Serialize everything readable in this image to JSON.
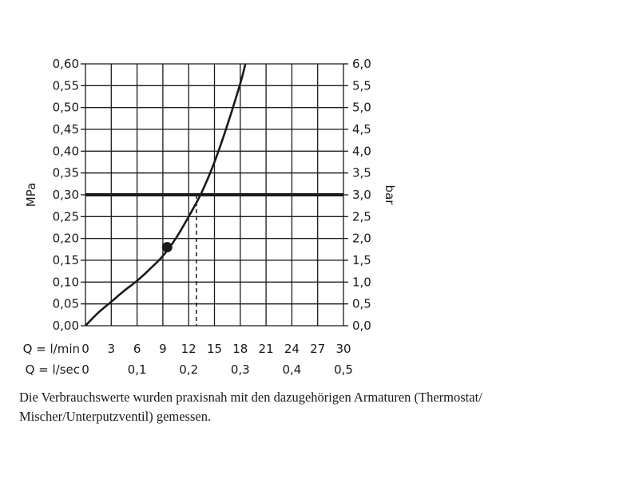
{
  "chart_data": {
    "type": "line",
    "y_left_label": "MPa",
    "y_right_label": "bar",
    "y_left_ticks": [
      "0,00",
      "0,05",
      "0,10",
      "0,15",
      "0,20",
      "0,25",
      "0,30",
      "0,35",
      "0,40",
      "0,45",
      "0,50",
      "0,55",
      "0,60"
    ],
    "y_right_ticks": [
      "0,0",
      "0,5",
      "1,0",
      "1,5",
      "2,0",
      "2,5",
      "3,0",
      "3,5",
      "4,0",
      "4,5",
      "5,0",
      "5,5",
      "6,0"
    ],
    "x_row1_label": "Q = l/min",
    "x_row1_ticks": [
      "0",
      "3",
      "6",
      "9",
      "12",
      "15",
      "18",
      "21",
      "24",
      "27",
      "30"
    ],
    "x_row2_label": "Q = l/sec",
    "x_row2_ticks": [
      {
        "label": "0",
        "at": 0
      },
      {
        "label": "0,1",
        "at": 6
      },
      {
        "label": "0,2",
        "at": 12
      },
      {
        "label": "0,3",
        "at": 18
      },
      {
        "label": "0,4",
        "at": 24
      },
      {
        "label": "0,5",
        "at": 30
      }
    ],
    "xlim": [
      0,
      30
    ],
    "ylim": [
      0,
      0.6
    ],
    "grid": true,
    "series": [
      {
        "x": [
          0,
          1.5,
          3,
          4.5,
          6,
          7.5,
          9,
          10.5,
          12,
          13.5,
          15,
          16.5,
          18,
          18.6
        ],
        "y": [
          0,
          0.03,
          0.055,
          0.08,
          0.103,
          0.13,
          0.16,
          0.2,
          0.25,
          0.305,
          0.375,
          0.46,
          0.555,
          0.6
        ]
      }
    ],
    "reference_line": {
      "y": 0.3
    },
    "operating_point": {
      "x": 12.9,
      "y": 0.3
    },
    "marker": {
      "x": 9.5,
      "y": 0.18
    },
    "colors": {
      "line": "#1a1a1a",
      "grid": "#1a1a1a",
      "background": "#ffffff"
    }
  },
  "caption": {
    "line1": "Die Verbrauchswerte wurden praxisnah mit den dazugehörigen Armaturen (Thermostat/",
    "line2": "Mischer/Unterputzventil) gemessen."
  }
}
